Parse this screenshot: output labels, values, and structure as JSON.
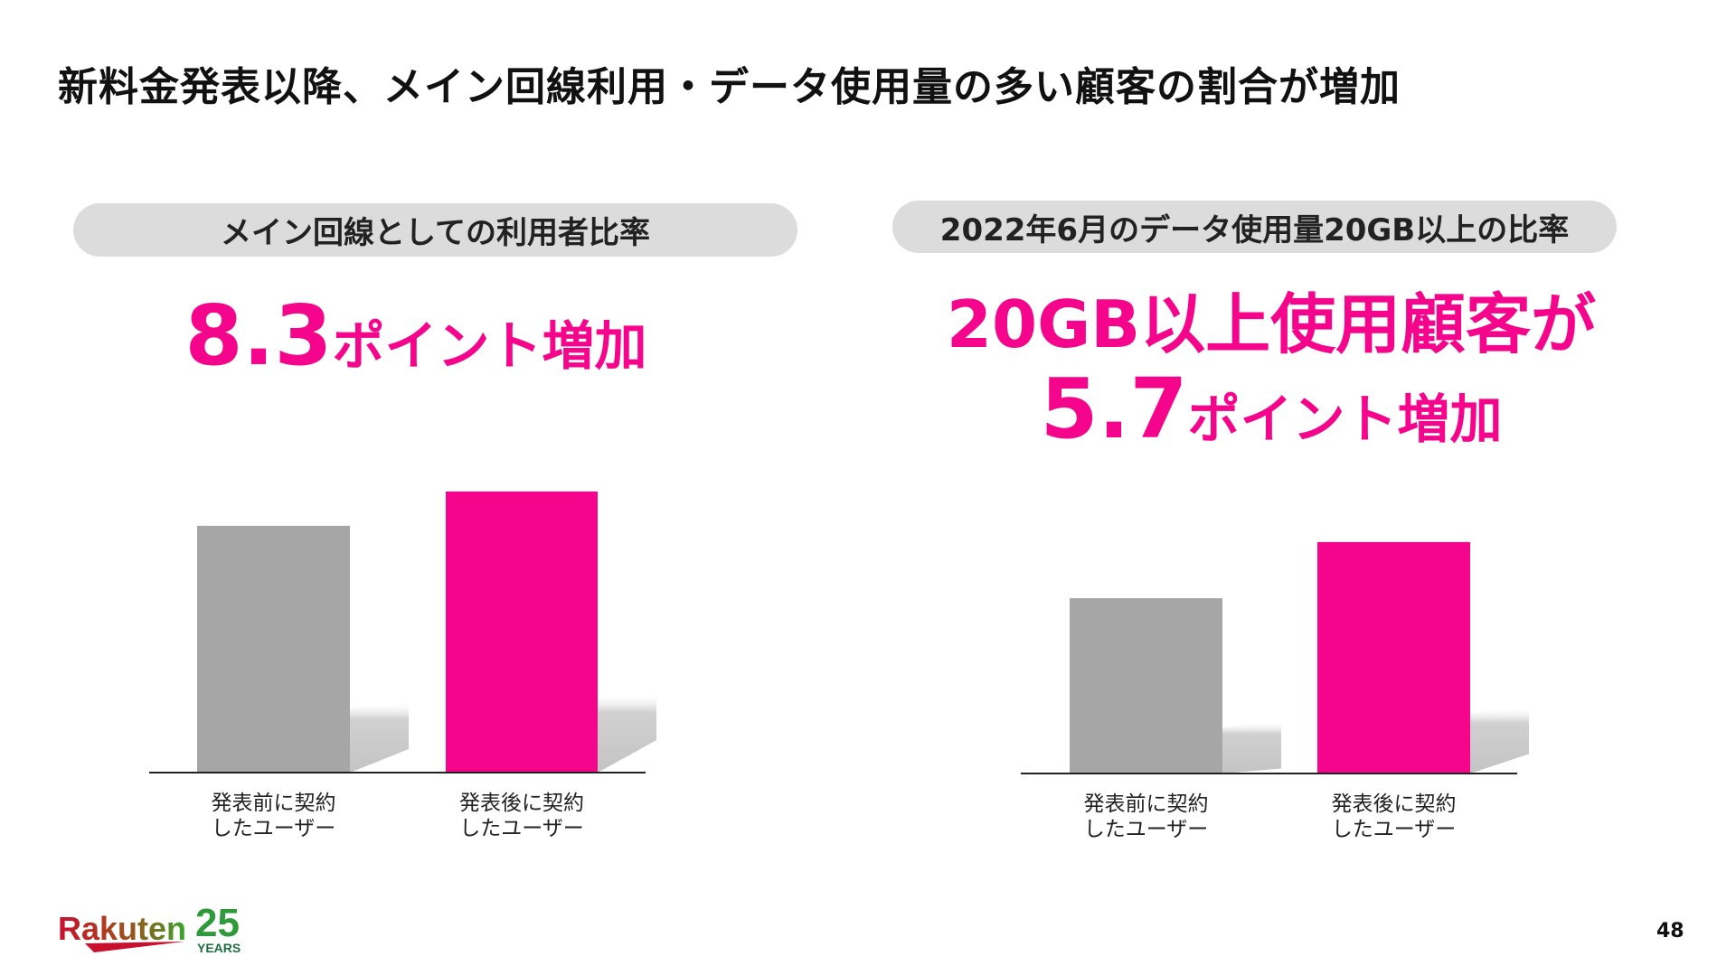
{
  "title": "新料金発表以降、メイン回線利用・データ使用量の多い顧客の割合が増加",
  "page_number": "48",
  "logo": {
    "text": "Rakuten",
    "years_number": "25",
    "years_label": "YEARS"
  },
  "colors": {
    "accent": "#f5058c",
    "before_bar": "#a6a6a6",
    "pill_bg": "#dcdcdc"
  },
  "chart_data": [
    {
      "type": "bar",
      "title": "メイン回線としての利用者比率",
      "headline": {
        "value": "8.3",
        "suffix": "ポイント増加"
      },
      "categories": [
        "発表前に契約\nしたユーザー",
        "発表後に契約\nしたユーザー"
      ],
      "category_lines": [
        [
          "発表前に契約",
          "したユーザー"
        ],
        [
          "発表後に契約",
          "したユーザー"
        ]
      ],
      "values": [
        59.7,
        68.0
      ],
      "value_note": "estimated; axis not printed",
      "ylim": [
        0,
        80
      ],
      "grid": false,
      "colors": [
        "#a6a6a6",
        "#f5058c"
      ]
    },
    {
      "type": "bar",
      "title": "2022年6月のデータ使用量20GB以上の比率",
      "headline": {
        "line1": "20GB以上使用顧客が",
        "value": "5.7",
        "suffix": "ポイント増加"
      },
      "categories": [
        "発表前に契約\nしたユーザー",
        "発表後に契約\nしたユーザー"
      ],
      "category_lines": [
        [
          "発表前に契約",
          "したユーザー"
        ],
        [
          "発表後に契約",
          "したユーザー"
        ]
      ],
      "values": [
        17.8,
        23.5
      ],
      "value_note": "estimated; axis not printed",
      "ylim": [
        0,
        30
      ],
      "grid": false,
      "colors": [
        "#a6a6a6",
        "#f5058c"
      ]
    }
  ]
}
